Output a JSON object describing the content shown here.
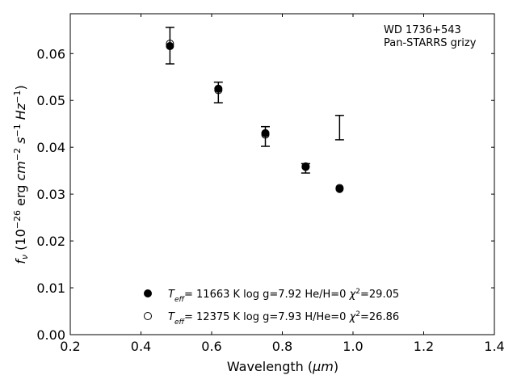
{
  "chart_data": {
    "type": "scatter",
    "xlabel_main": "Wavelength (",
    "xlabel_unit": "μm",
    "xlabel_close": ")",
    "ylabel_f": "f",
    "ylabel_nu": "ν",
    "ylabel_open": " (10",
    "ylabel_exp": "−26",
    "ylabel_erg": " erg ",
    "ylabel_cm": "cm",
    "ylabel_cmexp": "−2",
    "ylabel_s": " s",
    "ylabel_sexp": "−1",
    "ylabel_hz": " Hz",
    "ylabel_hzexp": "−1",
    "ylabel_close": ")",
    "xlim": [
      0.2,
      1.4
    ],
    "ylim": [
      0.0,
      0.0685
    ],
    "xticks": [
      0.2,
      0.4,
      0.6,
      0.8,
      1.0,
      1.2,
      1.4
    ],
    "xtick_labels": [
      "0.2",
      "0.4",
      "0.6",
      "0.8",
      "1.0",
      "1.2",
      "1.4"
    ],
    "yticks": [
      0.0,
      0.01,
      0.02,
      0.03,
      0.04,
      0.05,
      0.06
    ],
    "ytick_labels": [
      "0.00",
      "0.01",
      "0.02",
      "0.03",
      "0.04",
      "0.05",
      "0.06"
    ],
    "grid": false,
    "annotation_lines": [
      "WD 1736+543",
      "Pan-STARRS grizy"
    ],
    "observed": {
      "x": [
        0.482,
        0.619,
        0.752,
        0.866,
        0.962
      ],
      "y": [
        0.0617,
        0.0517,
        0.0423,
        0.0355,
        0.0442
      ],
      "yerr": [
        0.0039,
        0.0022,
        0.0021,
        0.001,
        0.0026
      ]
    },
    "series": [
      {
        "name_t": "T",
        "name_sub": "eff",
        "name_rest": "= 11663 K  log g=7.92  He/H=0  ",
        "name_chi": "χ",
        "name_chiexp": "2",
        "name_chival": "=29.05",
        "marker": "filled",
        "x": [
          0.482,
          0.619,
          0.752,
          0.866,
          0.962
        ],
        "y": [
          0.0616,
          0.0525,
          0.043,
          0.0358,
          0.0311
        ]
      },
      {
        "name_t": "T",
        "name_sub": "eff",
        "name_rest": "= 12375 K  log g=7.93  H/He=0  ",
        "name_chi": "χ",
        "name_chiexp": "2",
        "name_chival": "=26.86",
        "marker": "open",
        "x": [
          0.482,
          0.619,
          0.752,
          0.866,
          0.962
        ],
        "y": [
          0.0621,
          0.0522,
          0.0427,
          0.0359,
          0.0313
        ]
      }
    ],
    "legend_position": "lower-center"
  }
}
